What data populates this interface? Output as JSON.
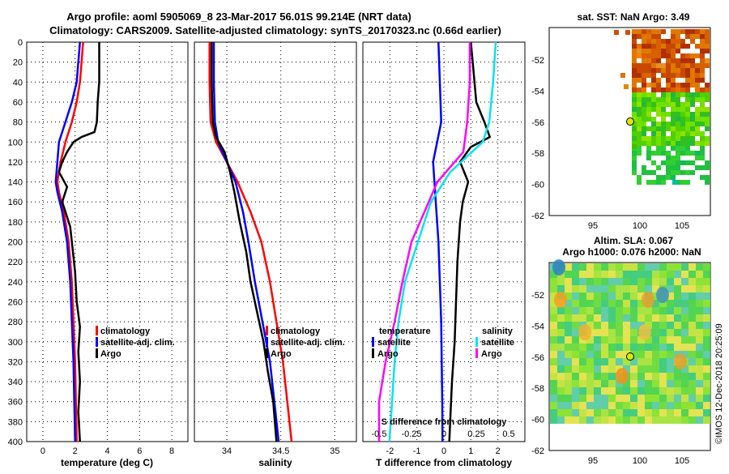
{
  "title": {
    "line1": "Argo profile: aoml 5905069_8 23-Mar-2017 56.01S 99.214E (NRT data)",
    "line2": "Climatology: CARS2009. Satellite-adjusted climatology: synTS_20170323.nc (0.66d earlier)"
  },
  "depth_ticks": [
    "0",
    "20",
    "40",
    "60",
    "80",
    "100",
    "120",
    "140",
    "160",
    "180",
    "200",
    "220",
    "240",
    "260",
    "280",
    "300",
    "320",
    "340",
    "360",
    "380",
    "400"
  ],
  "map_top": {
    "title": "sat. SST: NaN Argo: 3.49",
    "y_ticks": [
      "-52",
      "-54",
      "-56",
      "-58",
      "-60",
      "-62"
    ],
    "x_ticks": [
      "95",
      "100",
      "105"
    ]
  },
  "map_bottom": {
    "title_line1": "Altim. SLA: 0.067",
    "title_line2": "Argo h1000: 0.076 h2000: NaN",
    "y_ticks": [
      "-52",
      "-54",
      "-56",
      "-58",
      "-60",
      "-62"
    ],
    "x_ticks": [
      "95",
      "100",
      "105"
    ]
  },
  "watermark": "©IMOS 12-Dec-2018 20:25:09",
  "colors": {
    "climatology": "#ff0000",
    "satellite": "#0000ff",
    "argo": "#000000",
    "salinity_sat": "#00e5ee",
    "salinity_argo": "#ff00ff"
  },
  "chart_data": [
    {
      "type": "line",
      "title": "",
      "xlabel": "temperature (deg C)",
      "ylabel": "",
      "xlim": [
        -1,
        9
      ],
      "ylim": [
        400,
        0
      ],
      "x_ticks": [
        "0",
        "2",
        "4",
        "6",
        "8"
      ],
      "legend": [
        "climatology",
        "satellite-adj. clim.",
        "Argo"
      ],
      "series": [
        {
          "name": "climatology",
          "points": [
            [
              2.5,
              0
            ],
            [
              2.4,
              20
            ],
            [
              2.3,
              40
            ],
            [
              2.1,
              60
            ],
            [
              1.8,
              80
            ],
            [
              1.4,
              100
            ],
            [
              1.1,
              120
            ],
            [
              0.9,
              140
            ],
            [
              1.0,
              150
            ],
            [
              1.3,
              170
            ],
            [
              1.6,
              200
            ],
            [
              1.8,
              240
            ],
            [
              1.9,
              280
            ],
            [
              2.0,
              320
            ],
            [
              2.05,
              360
            ],
            [
              2.1,
              400
            ]
          ]
        },
        {
          "name": "satellite-adj. clim.",
          "points": [
            [
              2.3,
              0
            ],
            [
              2.2,
              20
            ],
            [
              2.1,
              40
            ],
            [
              1.8,
              60
            ],
            [
              1.4,
              80
            ],
            [
              1.0,
              100
            ],
            [
              0.9,
              120
            ],
            [
              0.8,
              140
            ],
            [
              0.9,
              150
            ],
            [
              1.2,
              170
            ],
            [
              1.5,
              200
            ],
            [
              1.7,
              240
            ],
            [
              1.8,
              280
            ],
            [
              1.9,
              320
            ],
            [
              1.95,
              360
            ],
            [
              2.0,
              400
            ]
          ]
        },
        {
          "name": "Argo",
          "points": [
            [
              3.5,
              0
            ],
            [
              3.5,
              20
            ],
            [
              3.5,
              40
            ],
            [
              3.4,
              60
            ],
            [
              3.35,
              80
            ],
            [
              3.2,
              90
            ],
            [
              2.4,
              95
            ],
            [
              1.9,
              100
            ],
            [
              1.5,
              110
            ],
            [
              1.2,
              120
            ],
            [
              1.0,
              130
            ],
            [
              1.5,
              145
            ],
            [
              1.2,
              160
            ],
            [
              1.4,
              170
            ],
            [
              1.7,
              185
            ],
            [
              1.8,
              200
            ],
            [
              2.0,
              230
            ],
            [
              2.1,
              260
            ],
            [
              2.3,
              285
            ],
            [
              2.2,
              310
            ],
            [
              2.3,
              340
            ],
            [
              2.2,
              370
            ],
            [
              2.3,
              400
            ]
          ]
        }
      ]
    },
    {
      "type": "line",
      "title": "",
      "xlabel": "salinity",
      "ylabel": "",
      "xlim": [
        33.7,
        35.2
      ],
      "ylim": [
        400,
        0
      ],
      "x_ticks": [
        "34",
        "34.5",
        "35"
      ],
      "legend": [
        "climatology",
        "satellite-adj. clim.",
        "Argo"
      ],
      "series": [
        {
          "name": "climatology",
          "points": [
            [
              33.84,
              0
            ],
            [
              33.84,
              40
            ],
            [
              33.85,
              80
            ],
            [
              33.9,
              100
            ],
            [
              34.0,
              120
            ],
            [
              34.1,
              140
            ],
            [
              34.22,
              170
            ],
            [
              34.32,
              200
            ],
            [
              34.4,
              240
            ],
            [
              34.46,
              280
            ],
            [
              34.52,
              320
            ],
            [
              34.56,
              360
            ],
            [
              34.6,
              400
            ]
          ]
        },
        {
          "name": "satellite-adj. clim.",
          "points": [
            [
              33.88,
              0
            ],
            [
              33.88,
              40
            ],
            [
              33.89,
              80
            ],
            [
              33.92,
              100
            ],
            [
              34.0,
              120
            ],
            [
              34.08,
              140
            ],
            [
              34.15,
              170
            ],
            [
              34.2,
              200
            ],
            [
              34.26,
              240
            ],
            [
              34.33,
              280
            ],
            [
              34.4,
              320
            ],
            [
              34.44,
              360
            ],
            [
              34.48,
              400
            ]
          ]
        },
        {
          "name": "Argo",
          "points": [
            [
              33.86,
              0
            ],
            [
              33.86,
              40
            ],
            [
              33.87,
              80
            ],
            [
              33.9,
              95
            ],
            [
              33.98,
              110
            ],
            [
              34.03,
              130
            ],
            [
              34.07,
              150
            ],
            [
              34.12,
              180
            ],
            [
              34.18,
              210
            ],
            [
              34.22,
              240
            ],
            [
              34.28,
              270
            ],
            [
              34.34,
              300
            ],
            [
              34.38,
              330
            ],
            [
              34.43,
              360
            ],
            [
              34.46,
              400
            ]
          ]
        }
      ]
    },
    {
      "type": "line",
      "title": "S difference from climatology",
      "xlabel": "T difference from climatology",
      "ylabel": "",
      "xlim": [
        -3,
        3
      ],
      "ylim": [
        400,
        0
      ],
      "x_ticks": [
        "-2",
        "-1",
        "0",
        "1",
        "2"
      ],
      "top_ticks": [
        "-0.5",
        "-0.25",
        "0",
        "0.25",
        "0.5"
      ],
      "legend_temperature": [
        "temperature",
        "satellite",
        "Argo"
      ],
      "legend_salinity": [
        "salinity",
        "satellite",
        "Argo"
      ],
      "series": [
        {
          "name": "T satellite",
          "points": [
            [
              -0.2,
              0
            ],
            [
              -0.15,
              40
            ],
            [
              -0.1,
              80
            ],
            [
              -0.4,
              120
            ],
            [
              -0.3,
              160
            ],
            [
              -0.2,
              200
            ],
            [
              -0.15,
              240
            ],
            [
              -0.1,
              280
            ],
            [
              -0.08,
              320
            ],
            [
              -0.06,
              360
            ],
            [
              -0.05,
              400
            ]
          ]
        },
        {
          "name": "T Argo",
          "points": [
            [
              1.0,
              0
            ],
            [
              1.1,
              30
            ],
            [
              1.2,
              60
            ],
            [
              1.5,
              80
            ],
            [
              1.7,
              95
            ],
            [
              1.0,
              105
            ],
            [
              0.6,
              120
            ],
            [
              0.9,
              140
            ],
            [
              0.7,
              160
            ],
            [
              0.6,
              180
            ],
            [
              0.5,
              220
            ],
            [
              0.45,
              260
            ],
            [
              0.4,
              300
            ],
            [
              0.3,
              340
            ],
            [
              0.25,
              370
            ],
            [
              0.2,
              400
            ]
          ]
        },
        {
          "name": "S satellite",
          "points": [
            [
              0.4,
              0
            ],
            [
              0.38,
              40
            ],
            [
              0.35,
              80
            ],
            [
              0.3,
              100
            ],
            [
              0.05,
              130
            ],
            [
              -0.1,
              160
            ],
            [
              -0.2,
              200
            ],
            [
              -0.3,
              240
            ],
            [
              -0.35,
              280
            ],
            [
              -0.38,
              320
            ],
            [
              -0.4,
              360
            ],
            [
              -0.42,
              400
            ]
          ]
        },
        {
          "name": "S Argo",
          "points": [
            [
              0.2,
              0
            ],
            [
              0.2,
              40
            ],
            [
              0.18,
              80
            ],
            [
              0.15,
              110
            ],
            [
              -0.05,
              140
            ],
            [
              -0.15,
              170
            ],
            [
              -0.25,
              200
            ],
            [
              -0.32,
              240
            ],
            [
              -0.38,
              280
            ],
            [
              -0.45,
              320
            ],
            [
              -0.5,
              360
            ],
            [
              -0.5,
              400
            ]
          ]
        }
      ]
    }
  ]
}
